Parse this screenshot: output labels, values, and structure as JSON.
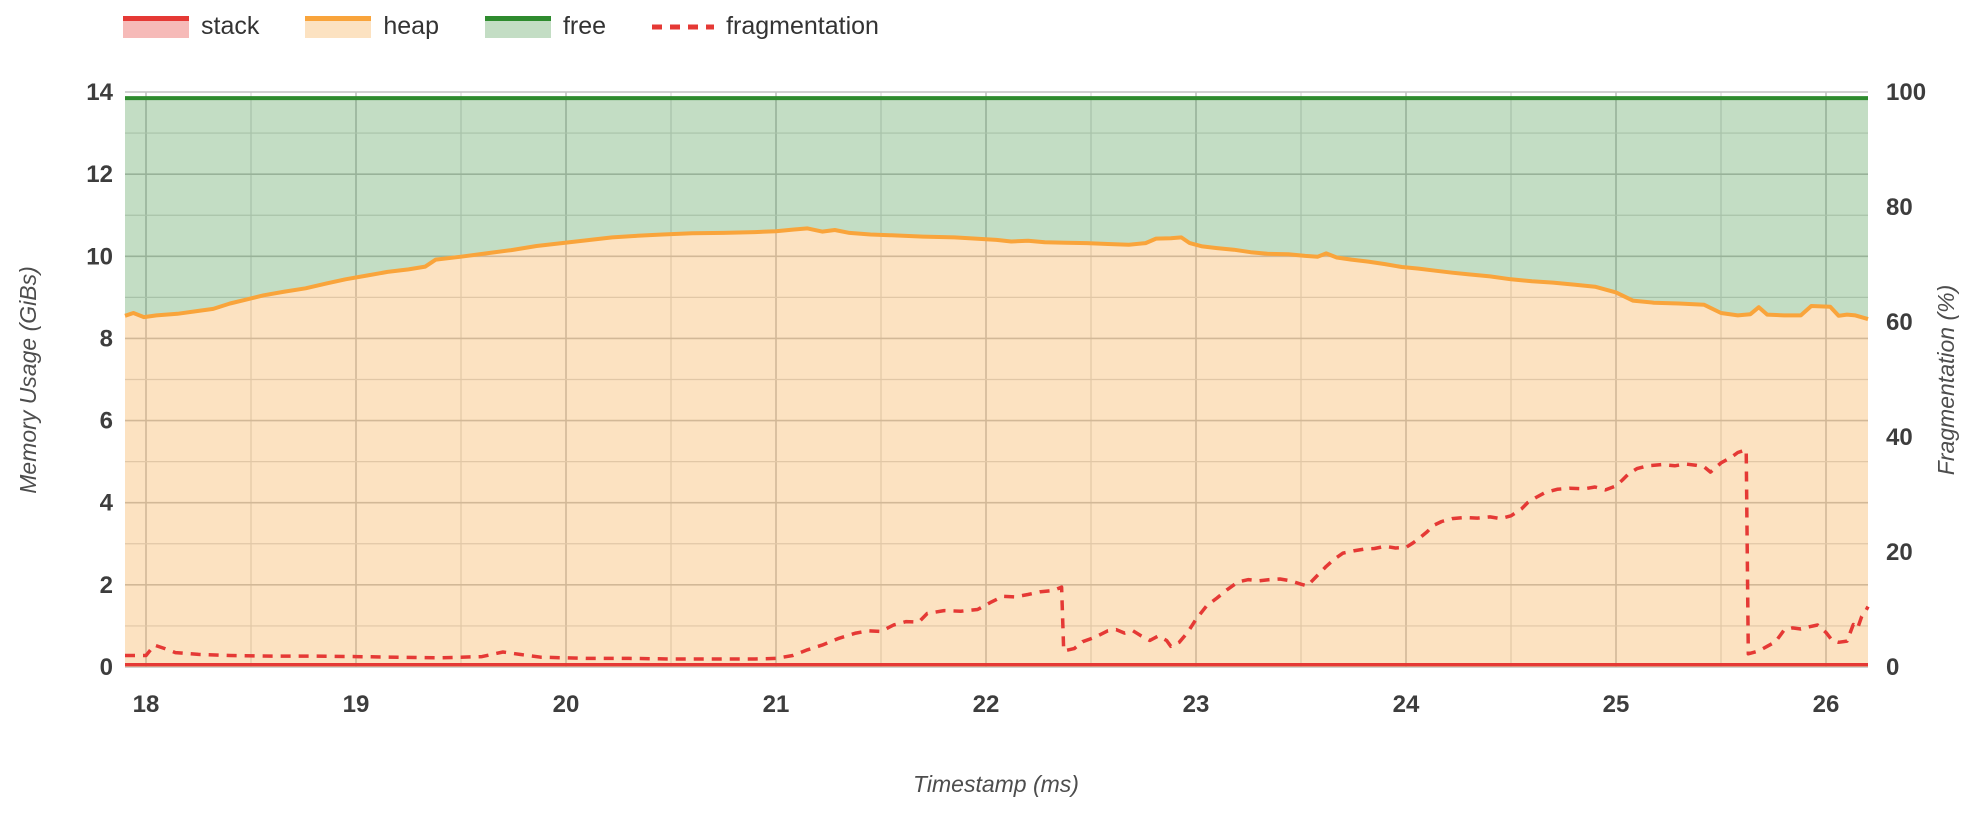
{
  "legend": {
    "items": [
      {
        "label": "stack",
        "kind": "area",
        "line_color": "#E53935",
        "fill_color": "rgba(229,57,53,0.35)"
      },
      {
        "label": "heap",
        "kind": "area",
        "line_color": "#F9A43B",
        "fill_color": "rgba(247,166,61,0.32)"
      },
      {
        "label": "free",
        "kind": "area",
        "line_color": "#2E8B2E",
        "fill_color": "rgba(56,142,60,0.30)"
      },
      {
        "label": "fragmentation",
        "kind": "dashed-line",
        "line_color": "#E53935"
      }
    ]
  },
  "chart_data": {
    "type": "area",
    "x_axis": {
      "label": "Timestamp (ms)",
      "range": [
        17.9,
        26.2
      ],
      "ticks": [
        18,
        19,
        20,
        21,
        22,
        23,
        24,
        25,
        26
      ],
      "minor_step": 0.5
    },
    "y_left": {
      "label": "Memory Usage (GiBs)",
      "range": [
        0,
        14
      ],
      "ticks": [
        0,
        2,
        4,
        6,
        8,
        10,
        12,
        14
      ],
      "minor_step": 1
    },
    "y_right": {
      "label": "Fragmentation (%)",
      "range": [
        0,
        100
      ],
      "ticks": [
        0,
        20,
        40,
        60,
        80,
        100
      ]
    },
    "grid": {
      "minor_color": "#d8d8d8",
      "major_color": "#c2c2c2"
    },
    "series": [
      {
        "name": "stack",
        "axis": "left",
        "style": "area",
        "line_color": "#E53935",
        "fill_color": "rgba(229,57,53,0.35)",
        "points": [
          [
            17.9,
            0.06
          ],
          [
            26.2,
            0.06
          ]
        ]
      },
      {
        "name": "heap",
        "axis": "left",
        "style": "area",
        "line_color": "#F9A43B",
        "fill_color": "rgba(247,166,61,0.32)",
        "points": [
          [
            17.9,
            8.55
          ],
          [
            17.94,
            8.62
          ],
          [
            17.99,
            8.52
          ],
          [
            18.05,
            8.56
          ],
          [
            18.15,
            8.6
          ],
          [
            18.25,
            8.67
          ],
          [
            18.32,
            8.72
          ],
          [
            18.4,
            8.85
          ],
          [
            18.48,
            8.95
          ],
          [
            18.56,
            9.05
          ],
          [
            18.66,
            9.14
          ],
          [
            18.76,
            9.22
          ],
          [
            18.86,
            9.34
          ],
          [
            18.95,
            9.44
          ],
          [
            19.05,
            9.53
          ],
          [
            19.15,
            9.62
          ],
          [
            19.25,
            9.68
          ],
          [
            19.33,
            9.75
          ],
          [
            19.38,
            9.92
          ],
          [
            19.5,
            9.99
          ],
          [
            19.62,
            10.07
          ],
          [
            19.74,
            10.15
          ],
          [
            19.86,
            10.25
          ],
          [
            19.98,
            10.32
          ],
          [
            20.1,
            10.39
          ],
          [
            20.22,
            10.46
          ],
          [
            20.34,
            10.5
          ],
          [
            20.46,
            10.53
          ],
          [
            20.6,
            10.56
          ],
          [
            20.75,
            10.57
          ],
          [
            20.9,
            10.59
          ],
          [
            21.0,
            10.61
          ],
          [
            21.08,
            10.65
          ],
          [
            21.15,
            10.68
          ],
          [
            21.22,
            10.6
          ],
          [
            21.28,
            10.64
          ],
          [
            21.35,
            10.57
          ],
          [
            21.45,
            10.53
          ],
          [
            21.55,
            10.51
          ],
          [
            21.7,
            10.48
          ],
          [
            21.85,
            10.46
          ],
          [
            21.95,
            10.43
          ],
          [
            22.05,
            10.4
          ],
          [
            22.12,
            10.36
          ],
          [
            22.2,
            10.38
          ],
          [
            22.28,
            10.34
          ],
          [
            22.38,
            10.33
          ],
          [
            22.48,
            10.32
          ],
          [
            22.58,
            10.3
          ],
          [
            22.68,
            10.28
          ],
          [
            22.76,
            10.32
          ],
          [
            22.81,
            10.43
          ],
          [
            22.88,
            10.44
          ],
          [
            22.93,
            10.46
          ],
          [
            22.97,
            10.32
          ],
          [
            23.03,
            10.24
          ],
          [
            23.1,
            10.2
          ],
          [
            23.18,
            10.16
          ],
          [
            23.26,
            10.1
          ],
          [
            23.34,
            10.06
          ],
          [
            23.44,
            10.05
          ],
          [
            23.52,
            10.01
          ],
          [
            23.58,
            9.99
          ],
          [
            23.62,
            10.07
          ],
          [
            23.67,
            9.97
          ],
          [
            23.74,
            9.92
          ],
          [
            23.82,
            9.87
          ],
          [
            23.9,
            9.81
          ],
          [
            23.98,
            9.74
          ],
          [
            24.06,
            9.7
          ],
          [
            24.14,
            9.65
          ],
          [
            24.22,
            9.6
          ],
          [
            24.3,
            9.56
          ],
          [
            24.4,
            9.51
          ],
          [
            24.5,
            9.44
          ],
          [
            24.6,
            9.39
          ],
          [
            24.7,
            9.36
          ],
          [
            24.8,
            9.31
          ],
          [
            24.9,
            9.26
          ],
          [
            25.0,
            9.12
          ],
          [
            25.08,
            8.92
          ],
          [
            25.18,
            8.87
          ],
          [
            25.3,
            8.85
          ],
          [
            25.42,
            8.82
          ],
          [
            25.5,
            8.62
          ],
          [
            25.58,
            8.56
          ],
          [
            25.64,
            8.59
          ],
          [
            25.68,
            8.76
          ],
          [
            25.72,
            8.58
          ],
          [
            25.8,
            8.56
          ],
          [
            25.88,
            8.56
          ],
          [
            25.93,
            8.79
          ],
          [
            26.02,
            8.77
          ],
          [
            26.06,
            8.55
          ],
          [
            26.1,
            8.58
          ],
          [
            26.14,
            8.56
          ],
          [
            26.2,
            8.47
          ]
        ]
      },
      {
        "name": "free",
        "axis": "left",
        "style": "area-band-to-total",
        "total": 13.85,
        "line_color": "#2E8B2E",
        "fill_color": "rgba(56,142,60,0.30)",
        "points": [
          [
            17.9,
            13.85
          ],
          [
            26.2,
            13.85
          ]
        ]
      },
      {
        "name": "fragmentation",
        "axis": "right",
        "style": "dashed-line",
        "line_color": "#E53935",
        "dash": [
          10,
          8
        ],
        "points": [
          [
            17.9,
            2.0
          ],
          [
            18.0,
            2.0
          ],
          [
            18.04,
            3.8
          ],
          [
            18.09,
            3.2
          ],
          [
            18.14,
            2.5
          ],
          [
            18.25,
            2.2
          ],
          [
            18.4,
            2.0
          ],
          [
            18.6,
            1.9
          ],
          [
            18.8,
            1.9
          ],
          [
            19.0,
            1.8
          ],
          [
            19.2,
            1.7
          ],
          [
            19.4,
            1.6
          ],
          [
            19.6,
            1.8
          ],
          [
            19.7,
            2.6
          ],
          [
            19.78,
            2.2
          ],
          [
            19.88,
            1.7
          ],
          [
            20.1,
            1.5
          ],
          [
            20.3,
            1.5
          ],
          [
            20.5,
            1.4
          ],
          [
            20.7,
            1.4
          ],
          [
            20.9,
            1.4
          ],
          [
            21.0,
            1.5
          ],
          [
            21.08,
            2.0
          ],
          [
            21.15,
            3.0
          ],
          [
            21.22,
            3.8
          ],
          [
            21.3,
            5.0
          ],
          [
            21.38,
            5.9
          ],
          [
            21.44,
            6.3
          ],
          [
            21.5,
            6.2
          ],
          [
            21.56,
            7.3
          ],
          [
            21.62,
            7.9
          ],
          [
            21.68,
            7.8
          ],
          [
            21.72,
            9.3
          ],
          [
            21.8,
            9.8
          ],
          [
            21.88,
            9.7
          ],
          [
            21.96,
            10.0
          ],
          [
            22.02,
            11.2
          ],
          [
            22.08,
            12.3
          ],
          [
            22.14,
            12.2
          ],
          [
            22.2,
            12.6
          ],
          [
            22.26,
            13.1
          ],
          [
            22.32,
            13.3
          ],
          [
            22.36,
            13.9
          ],
          [
            22.37,
            2.8
          ],
          [
            22.42,
            3.2
          ],
          [
            22.46,
            4.4
          ],
          [
            22.52,
            5.2
          ],
          [
            22.58,
            6.3
          ],
          [
            22.62,
            6.5
          ],
          [
            22.66,
            5.9
          ],
          [
            22.7,
            6.3
          ],
          [
            22.74,
            5.4
          ],
          [
            22.78,
            4.6
          ],
          [
            22.82,
            5.4
          ],
          [
            22.86,
            4.6
          ],
          [
            22.88,
            3.6
          ],
          [
            22.92,
            4.3
          ],
          [
            22.96,
            6.0
          ],
          [
            23.0,
            8.3
          ],
          [
            23.05,
            10.6
          ],
          [
            23.1,
            12.0
          ],
          [
            23.15,
            13.5
          ],
          [
            23.2,
            14.8
          ],
          [
            23.25,
            15.2
          ],
          [
            23.3,
            15.0
          ],
          [
            23.35,
            15.2
          ],
          [
            23.4,
            15.3
          ],
          [
            23.45,
            15.0
          ],
          [
            23.5,
            14.4
          ],
          [
            23.53,
            14.1
          ],
          [
            23.58,
            16.0
          ],
          [
            23.62,
            17.5
          ],
          [
            23.66,
            18.8
          ],
          [
            23.7,
            19.8
          ],
          [
            23.75,
            20.2
          ],
          [
            23.8,
            20.5
          ],
          [
            23.85,
            20.6
          ],
          [
            23.9,
            21.0
          ],
          [
            23.95,
            20.7
          ],
          [
            24.0,
            20.8
          ],
          [
            24.03,
            21.5
          ],
          [
            24.06,
            22.3
          ],
          [
            24.1,
            23.5
          ],
          [
            24.13,
            24.6
          ],
          [
            24.17,
            25.3
          ],
          [
            24.22,
            25.8
          ],
          [
            24.28,
            26.0
          ],
          [
            24.34,
            25.9
          ],
          [
            24.4,
            26.1
          ],
          [
            24.45,
            25.8
          ],
          [
            24.5,
            26.3
          ],
          [
            24.55,
            27.5
          ],
          [
            24.58,
            28.6
          ],
          [
            24.62,
            29.5
          ],
          [
            24.66,
            30.3
          ],
          [
            24.72,
            30.9
          ],
          [
            24.78,
            31.1
          ],
          [
            24.85,
            31.0
          ],
          [
            24.9,
            31.3
          ],
          [
            24.95,
            30.8
          ],
          [
            25.0,
            31.5
          ],
          [
            25.03,
            32.5
          ],
          [
            25.06,
            33.6
          ],
          [
            25.1,
            34.5
          ],
          [
            25.15,
            35.0
          ],
          [
            25.22,
            35.2
          ],
          [
            25.28,
            35.0
          ],
          [
            25.33,
            35.3
          ],
          [
            25.38,
            35.1
          ],
          [
            25.42,
            34.8
          ],
          [
            25.45,
            33.9
          ],
          [
            25.5,
            35.5
          ],
          [
            25.55,
            36.5
          ],
          [
            25.58,
            37.3
          ],
          [
            25.62,
            37.8
          ],
          [
            25.63,
            2.3
          ],
          [
            25.68,
            2.8
          ],
          [
            25.72,
            3.6
          ],
          [
            25.76,
            4.4
          ],
          [
            25.8,
            6.4
          ],
          [
            25.84,
            6.8
          ],
          [
            25.88,
            6.6
          ],
          [
            25.92,
            7.0
          ],
          [
            25.96,
            7.3
          ],
          [
            26.0,
            6.0
          ],
          [
            26.03,
            4.6
          ],
          [
            26.06,
            4.3
          ],
          [
            26.1,
            4.5
          ],
          [
            26.13,
            7.4
          ],
          [
            26.15,
            6.7
          ],
          [
            26.17,
            8.8
          ],
          [
            26.19,
            9.8
          ],
          [
            26.2,
            10.5
          ]
        ]
      }
    ]
  }
}
